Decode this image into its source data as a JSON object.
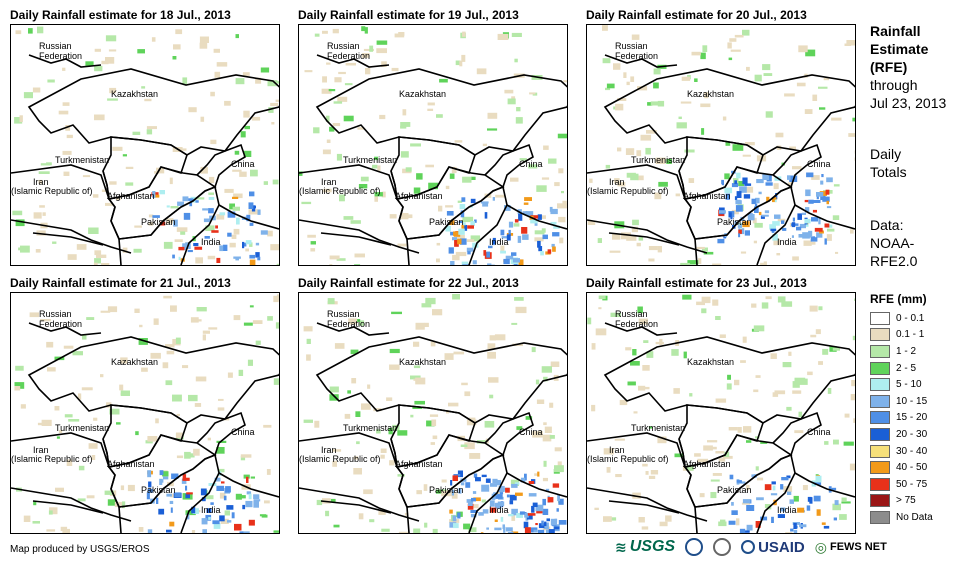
{
  "panels": [
    {
      "title": "Daily Rainfall estimate for 18 Jul., 2013"
    },
    {
      "title": "Daily Rainfall estimate for 19 Jul., 2013"
    },
    {
      "title": "Daily Rainfall estimate for 20 Jul., 2013"
    },
    {
      "title": "Daily Rainfall estimate for 21 Jul., 2013"
    },
    {
      "title": "Daily Rainfall estimate for 22 Jul., 2013"
    },
    {
      "title": "Daily Rainfall estimate for 23 Jul., 2013"
    }
  ],
  "map_labels": {
    "russia_1": "Russian",
    "russia_2": "Federation",
    "kazakhstan": "Kazakhstan",
    "turkmenistan": "Turkmenistan",
    "iran_1": "Iran",
    "iran_2": "(Islamic Republic of)",
    "afghanistan": "Afghanistan",
    "pakistan": "Pakistan",
    "china": "China",
    "india": "India"
  },
  "sidebar": {
    "title_1": "Rainfall",
    "title_2": "Estimate",
    "title_3": "(RFE)",
    "through_1": "through",
    "through_2": "Jul 23, 2013",
    "totals_1": "Daily",
    "totals_2": "Totals",
    "data_1": "Data:",
    "data_2": "NOAA-",
    "data_3": "RFE2.0"
  },
  "legend": {
    "title": "RFE (mm)",
    "items": [
      {
        "label": "0 - 0.1",
        "color": "#ffffff"
      },
      {
        "label": "0.1 - 1",
        "color": "#e9dcc0"
      },
      {
        "label": "1 - 2",
        "color": "#b5e8a8"
      },
      {
        "label": "2 - 5",
        "color": "#5fd35a"
      },
      {
        "label": "5 - 10",
        "color": "#aeeef0"
      },
      {
        "label": "10 - 15",
        "color": "#7fb2ea"
      },
      {
        "label": "15 - 20",
        "color": "#4f8fe6"
      },
      {
        "label": "20 - 30",
        "color": "#1a5fd6"
      },
      {
        "label": "30 - 40",
        "color": "#f6e07a"
      },
      {
        "label": "40 - 50",
        "color": "#f29a1a"
      },
      {
        "label": "50 - 75",
        "color": "#e8311a"
      },
      {
        "label": "> 75",
        "color": "#9b1616"
      },
      {
        "label": "No Data",
        "color": "#8c8c8c"
      }
    ]
  },
  "footer": {
    "credit": "Map produced by USGS/EROS",
    "logo_usgs": "USGS",
    "logo_usaid": "USAID",
    "logo_fewsnet": "FEWS NET"
  }
}
